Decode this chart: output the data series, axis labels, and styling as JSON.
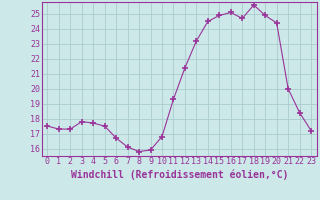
{
  "x": [
    0,
    1,
    2,
    3,
    4,
    5,
    6,
    7,
    8,
    9,
    10,
    11,
    12,
    13,
    14,
    15,
    16,
    17,
    18,
    19,
    20,
    21,
    22,
    23
  ],
  "y": [
    17.5,
    17.3,
    17.3,
    17.8,
    17.7,
    17.5,
    16.7,
    16.1,
    15.8,
    15.9,
    16.8,
    19.3,
    21.4,
    23.2,
    24.5,
    24.9,
    25.1,
    24.7,
    25.6,
    24.9,
    24.4,
    20.0,
    18.4,
    17.2
  ],
  "line_color": "#993399",
  "marker": "+",
  "marker_size": 4,
  "bg_color": "#cce8e8",
  "grid_color": "#aacccc",
  "xlabel": "Windchill (Refroidissement éolien,°C)",
  "xlim": [
    -0.5,
    23.5
  ],
  "ylim": [
    15.5,
    25.8
  ],
  "yticks": [
    16,
    17,
    18,
    19,
    20,
    21,
    22,
    23,
    24,
    25
  ],
  "xticks": [
    0,
    1,
    2,
    3,
    4,
    5,
    6,
    7,
    8,
    9,
    10,
    11,
    12,
    13,
    14,
    15,
    16,
    17,
    18,
    19,
    20,
    21,
    22,
    23
  ],
  "tick_color": "#993399",
  "label_fontsize": 7,
  "tick_fontsize": 6
}
